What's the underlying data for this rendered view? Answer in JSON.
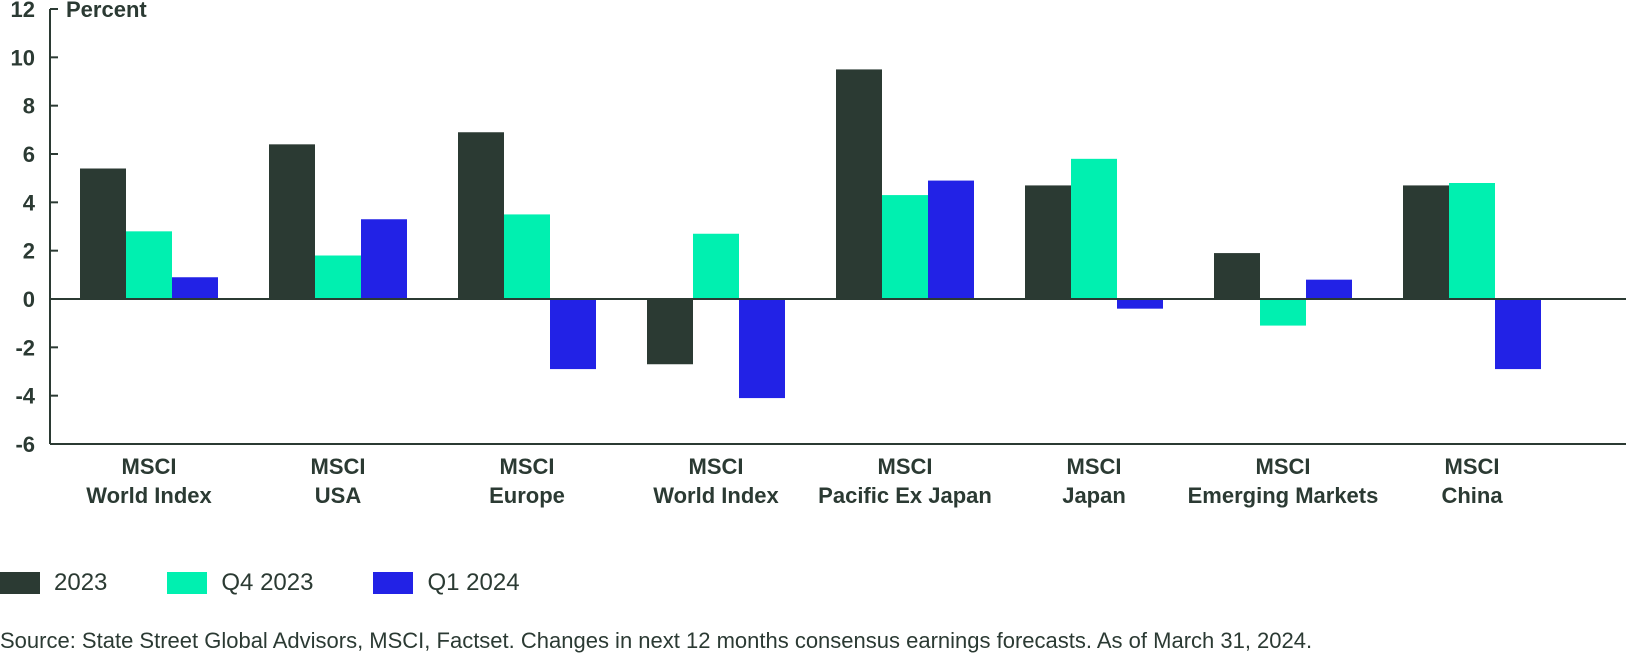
{
  "chart_data": {
    "type": "bar",
    "ylabel": "Percent",
    "ylim": [
      -6,
      12
    ],
    "yticks": [
      12,
      10,
      8,
      6,
      4,
      2,
      0,
      -2,
      -4,
      -6
    ],
    "ytick_labels": [
      "12",
      "10",
      "8",
      "6",
      "4",
      "2",
      "0",
      "-2",
      "-4",
      "-6"
    ],
    "categories": [
      [
        "MSCI",
        "World Index"
      ],
      [
        "MSCI",
        "USA"
      ],
      [
        "MSCI",
        "Europe"
      ],
      [
        "MSCI",
        "World Index"
      ],
      [
        "MSCI",
        "Pacific Ex Japan"
      ],
      [
        "MSCI",
        "Japan"
      ],
      [
        "MSCI",
        "Emerging Markets"
      ],
      [
        "MSCI",
        "China"
      ]
    ],
    "series": [
      {
        "name": "2023",
        "color": "#2b3a33",
        "values": [
          5.4,
          6.4,
          6.9,
          -2.7,
          9.5,
          4.7,
          1.9,
          4.7
        ]
      },
      {
        "name": "Q4 2023",
        "color": "#00f0b0",
        "values": [
          2.8,
          1.8,
          3.5,
          2.7,
          4.3,
          5.8,
          -1.1,
          4.8
        ]
      },
      {
        "name": "Q1 2024",
        "color": "#2222e6",
        "values": [
          0.9,
          3.3,
          -2.9,
          -4.1,
          4.9,
          -0.4,
          0.8,
          -2.9
        ]
      }
    ],
    "legend_position": "bottom-left",
    "grid": false
  },
  "source": "Source: State Street Global Advisors, MSCI, Factset. Changes in next 12 months consensus earnings forecasts. As of March 31, 2024."
}
